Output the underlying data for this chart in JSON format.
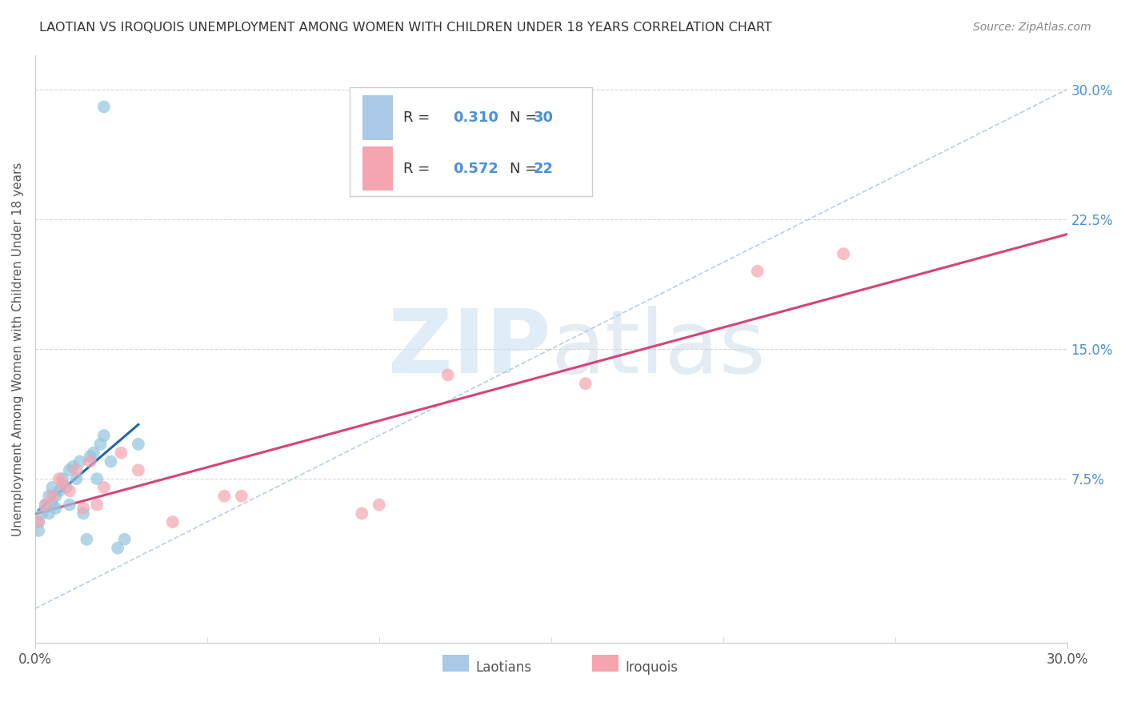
{
  "title": "LAOTIAN VS IROQUOIS UNEMPLOYMENT AMONG WOMEN WITH CHILDREN UNDER 18 YEARS CORRELATION CHART",
  "source": "Source: ZipAtlas.com",
  "ylabel": "Unemployment Among Women with Children Under 18 years",
  "xlim": [
    0.0,
    0.3
  ],
  "ylim": [
    -0.02,
    0.32
  ],
  "yticks_right": [
    0.075,
    0.15,
    0.225,
    0.3
  ],
  "ytick_labels_right": [
    "7.5%",
    "15.0%",
    "22.5%",
    "30.0%"
  ],
  "blue_color": "#92c5de",
  "pink_color": "#f4a5b0",
  "blue_line_color": "#2166ac",
  "pink_line_color": "#d6437a",
  "watermark_zip_color": "#cce0f0",
  "watermark_atlas_color": "#c8d8e8",
  "background_color": "#ffffff",
  "grid_color": "#d9d9d9",
  "laotians_x": [
    0.001,
    0.001,
    0.002,
    0.003,
    0.004,
    0.004,
    0.005,
    0.005,
    0.006,
    0.006,
    0.007,
    0.008,
    0.009,
    0.01,
    0.01,
    0.011,
    0.012,
    0.013,
    0.014,
    0.015,
    0.016,
    0.017,
    0.018,
    0.019,
    0.02,
    0.022,
    0.024,
    0.026,
    0.03,
    0.02
  ],
  "laotians_y": [
    0.045,
    0.05,
    0.055,
    0.06,
    0.055,
    0.065,
    0.06,
    0.07,
    0.065,
    0.058,
    0.068,
    0.075,
    0.07,
    0.08,
    0.06,
    0.082,
    0.075,
    0.085,
    0.055,
    0.04,
    0.088,
    0.09,
    0.075,
    0.095,
    0.1,
    0.085,
    0.035,
    0.04,
    0.095,
    0.29
  ],
  "iroquois_x": [
    0.001,
    0.003,
    0.005,
    0.007,
    0.008,
    0.01,
    0.012,
    0.014,
    0.016,
    0.018,
    0.02,
    0.025,
    0.03,
    0.04,
    0.055,
    0.06,
    0.095,
    0.1,
    0.12,
    0.16,
    0.21,
    0.235
  ],
  "iroquois_y": [
    0.05,
    0.06,
    0.065,
    0.075,
    0.072,
    0.068,
    0.08,
    0.058,
    0.085,
    0.06,
    0.07,
    0.09,
    0.08,
    0.05,
    0.065,
    0.065,
    0.055,
    0.06,
    0.135,
    0.13,
    0.195,
    0.205
  ]
}
